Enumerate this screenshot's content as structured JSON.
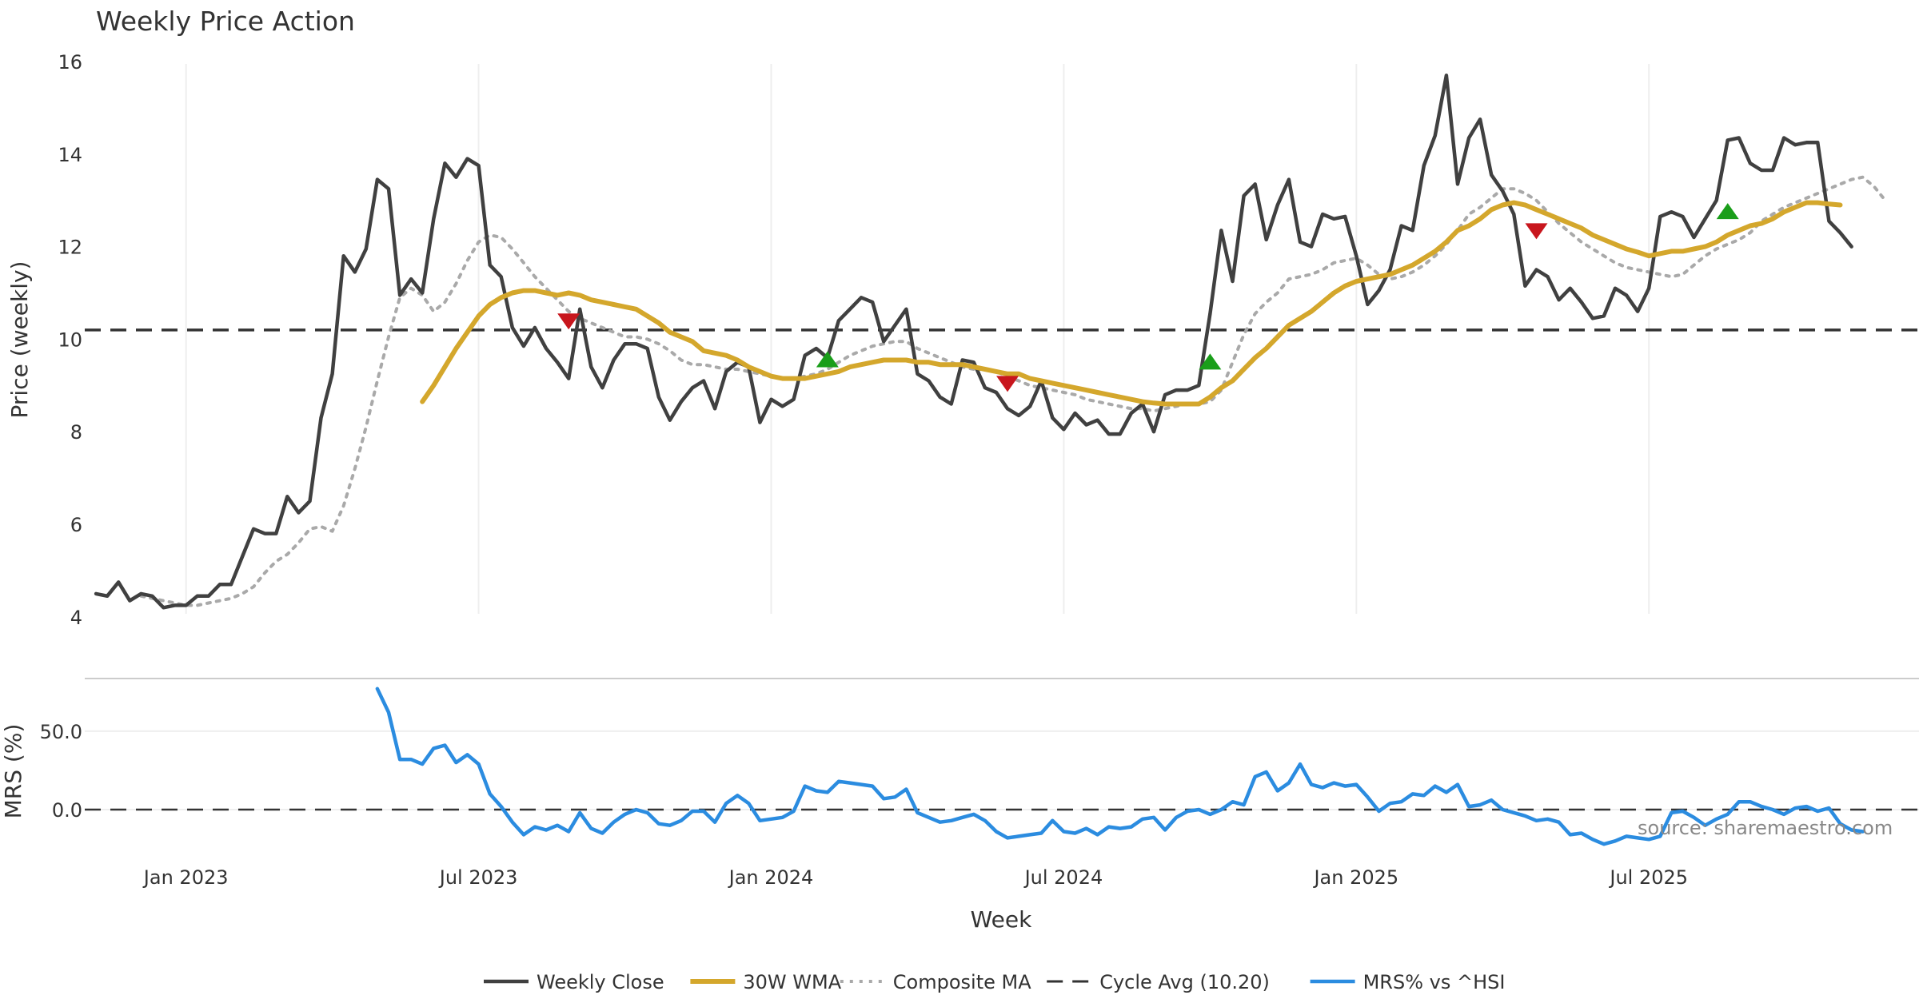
{
  "chart_data": {
    "type": "line",
    "title": "Weekly Price Action",
    "xlabel": "Week",
    "x_ticks": [
      "Jan 2023",
      "Jul 2023",
      "Jan 2024",
      "Jul 2024",
      "Jan 2025",
      "Jul 2025"
    ],
    "x_tick_weeks": [
      8,
      34,
      60,
      86,
      112,
      138
    ],
    "x_range_weeks": [
      -1,
      162
    ],
    "panels": [
      {
        "name": "price",
        "ylabel": "Price (weekly)",
        "ylim": [
          3.6,
          16.5
        ],
        "y_ticks": [
          4,
          6,
          8,
          10,
          12,
          14,
          16
        ],
        "series": [
          {
            "name": "Weekly Close",
            "style": "solid",
            "color": "#404040",
            "start_week": 0,
            "values": [
              4.5,
              4.45,
              4.75,
              4.35,
              4.5,
              4.45,
              4.2,
              4.25,
              4.25,
              4.45,
              4.45,
              4.7,
              4.7,
              5.3,
              5.9,
              5.8,
              5.8,
              6.6,
              6.25,
              6.5,
              8.3,
              9.25,
              11.8,
              11.45,
              11.95,
              13.45,
              13.25,
              10.95,
              11.3,
              11.0,
              12.6,
              13.8,
              13.5,
              13.9,
              13.75,
              11.6,
              11.35,
              10.25,
              9.85,
              10.25,
              9.8,
              9.5,
              9.15,
              10.65,
              9.4,
              8.95,
              9.55,
              9.9,
              9.9,
              9.8,
              8.75,
              8.25,
              8.65,
              8.95,
              9.1,
              8.5,
              9.3,
              9.5,
              9.4,
              8.2,
              8.7,
              8.55,
              8.7,
              9.65,
              9.8,
              9.6,
              10.4,
              10.65,
              10.9,
              10.8,
              9.95,
              10.3,
              10.65,
              9.25,
              9.1,
              8.75,
              8.6,
              9.55,
              9.5,
              8.95,
              8.85,
              8.5,
              8.35,
              8.55,
              9.1,
              8.3,
              8.05,
              8.4,
              8.15,
              8.25,
              7.95,
              7.95,
              8.4,
              8.6,
              8.0,
              8.8,
              8.9,
              8.9,
              9.0,
              10.55,
              12.35,
              11.25,
              13.1,
              13.35,
              12.15,
              12.9,
              13.45,
              12.1,
              12.0,
              12.7,
              12.6,
              12.65,
              11.8,
              10.75,
              11.05,
              11.5,
              12.45,
              12.35,
              13.75,
              14.4,
              15.7,
              13.35,
              14.35,
              14.75,
              13.55,
              13.2,
              12.7,
              11.15,
              11.5,
              11.35,
              10.85,
              11.1,
              10.8,
              10.45,
              10.5,
              11.1,
              10.95,
              10.6,
              11.1,
              12.65,
              12.75,
              12.65,
              12.2,
              12.6,
              13.0,
              14.3,
              14.35,
              13.8,
              13.65,
              13.65,
              14.35,
              14.2,
              14.25,
              14.25,
              12.55,
              12.3,
              12.0
            ]
          },
          {
            "name": "30W WMA",
            "style": "solid-thick",
            "color": "#D4A72C",
            "start_week": 29,
            "values": [
              8.65,
              9.0,
              9.4,
              9.8,
              10.15,
              10.5,
              10.75,
              10.9,
              11.0,
              11.05,
              11.05,
              11.0,
              10.95,
              11.0,
              10.95,
              10.85,
              10.8,
              10.75,
              10.7,
              10.65,
              10.5,
              10.35,
              10.15,
              10.05,
              9.95,
              9.75,
              9.7,
              9.65,
              9.55,
              9.4,
              9.3,
              9.2,
              9.15,
              9.15,
              9.15,
              9.2,
              9.25,
              9.3,
              9.4,
              9.45,
              9.5,
              9.55,
              9.55,
              9.55,
              9.5,
              9.5,
              9.45,
              9.45,
              9.45,
              9.4,
              9.35,
              9.3,
              9.25,
              9.25,
              9.15,
              9.1,
              9.05,
              9.0,
              8.95,
              8.9,
              8.85,
              8.8,
              8.75,
              8.7,
              8.65,
              8.62,
              8.6,
              8.6,
              8.6,
              8.6,
              8.75,
              8.95,
              9.1,
              9.35,
              9.6,
              9.8,
              10.05,
              10.3,
              10.45,
              10.6,
              10.8,
              11.0,
              11.15,
              11.25,
              11.3,
              11.35,
              11.4,
              11.5,
              11.6,
              11.75,
              11.9,
              12.1,
              12.35,
              12.45,
              12.6,
              12.8,
              12.9,
              12.95,
              12.9,
              12.8,
              12.7,
              12.6,
              12.5,
              12.4,
              12.25,
              12.15,
              12.05,
              11.95,
              11.88,
              11.8,
              11.85,
              11.9,
              11.9,
              11.95,
              12.0,
              12.1,
              12.25,
              12.35,
              12.45,
              12.5,
              12.6,
              12.75,
              12.85,
              12.95,
              12.95,
              12.92,
              12.9
            ]
          },
          {
            "name": "Composite MA",
            "style": "dotted",
            "color": "#A9A9A9",
            "start_week": 4,
            "values": [
              4.45,
              4.4,
              4.35,
              4.3,
              4.25,
              4.25,
              4.3,
              4.35,
              4.4,
              4.5,
              4.65,
              4.95,
              5.2,
              5.35,
              5.6,
              5.9,
              5.95,
              5.85,
              6.4,
              7.2,
              8.1,
              9.1,
              10.05,
              10.9,
              11.1,
              10.95,
              10.6,
              10.8,
              11.2,
              11.7,
              12.1,
              12.25,
              12.2,
              11.95,
              11.65,
              11.35,
              11.1,
              10.85,
              10.6,
              10.45,
              10.35,
              10.25,
              10.15,
              10.05,
              10.05,
              10.0,
              9.9,
              9.75,
              9.55,
              9.45,
              9.45,
              9.4,
              9.35,
              9.35,
              9.3,
              9.25,
              9.2,
              9.15,
              9.15,
              9.2,
              9.25,
              9.35,
              9.5,
              9.65,
              9.75,
              9.85,
              9.9,
              9.95,
              9.95,
              9.8,
              9.7,
              9.6,
              9.5,
              9.4,
              9.35,
              9.35,
              9.3,
              9.2,
              9.1,
              9.0,
              8.95,
              8.9,
              8.85,
              8.8,
              8.7,
              8.65,
              8.6,
              8.55,
              8.5,
              8.5,
              8.45,
              8.5,
              8.55,
              8.6,
              8.6,
              8.65,
              8.9,
              9.5,
              10.1,
              10.55,
              10.8,
              11.0,
              11.3,
              11.35,
              11.4,
              11.5,
              11.65,
              11.7,
              11.75,
              11.6,
              11.4,
              11.3,
              11.35,
              11.45,
              11.6,
              11.8,
              12.05,
              12.35,
              12.7,
              12.85,
              13.05,
              13.25,
              13.25,
              13.15,
              13.0,
              12.75,
              12.5,
              12.3,
              12.1,
              11.95,
              11.8,
              11.65,
              11.55,
              11.5,
              11.45,
              11.4,
              11.35,
              11.4,
              11.6,
              11.8,
              11.95,
              12.05,
              12.15,
              12.3,
              12.55,
              12.7,
              12.85,
              12.95,
              13.05,
              13.15,
              13.25,
              13.35,
              13.45,
              13.5,
              13.3,
              13.0
            ]
          }
        ],
        "reference_line": {
          "name": "Cycle Avg (10.20)",
          "value": 10.2,
          "style": "dashed",
          "color": "#333333"
        },
        "signals": [
          {
            "type": "sell",
            "week": 42,
            "value": 10.4,
            "color": "#C8161D"
          },
          {
            "type": "buy",
            "week": 65,
            "value": 9.55,
            "color": "#1A9E1A"
          },
          {
            "type": "sell",
            "week": 81,
            "value": 9.05,
            "color": "#C8161D"
          },
          {
            "type": "buy",
            "week": 99,
            "value": 9.5,
            "color": "#1A9E1A"
          },
          {
            "type": "sell",
            "week": 128,
            "value": 12.35,
            "color": "#C8161D"
          },
          {
            "type": "buy",
            "week": 145,
            "value": 12.75,
            "color": "#1A9E1A"
          }
        ]
      },
      {
        "name": "mrs",
        "ylabel": "MRS (%)",
        "ylim": [
          -28,
          82
        ],
        "y_ticks": [
          0,
          50
        ],
        "y_tick_labels": [
          "0.0",
          "50.0"
        ],
        "source_note": "source: sharemaestro.com",
        "series": [
          {
            "name": "MRS% vs ^HSI",
            "style": "solid",
            "color": "#2B8CE0",
            "start_week": 25,
            "values": [
              77,
              62,
              32,
              32,
              29,
              39,
              41,
              30,
              35,
              29,
              10,
              2,
              -8,
              -16,
              -11,
              -13,
              -10,
              -14,
              -2,
              -12,
              -15,
              -8,
              -3,
              0,
              -2,
              -9,
              -10,
              -7,
              -1,
              -1,
              -8,
              4,
              9,
              4,
              -7,
              -6,
              -5,
              -1,
              15,
              12,
              11,
              18,
              17,
              16,
              15,
              7,
              8,
              13,
              -2,
              -5,
              -8,
              -7,
              -5,
              -3,
              -7,
              -14,
              -18,
              -17,
              -16,
              -15,
              -7,
              -14,
              -15,
              -12,
              -16,
              -11,
              -12,
              -11,
              -6,
              -5,
              -13,
              -5,
              -1,
              0,
              -3,
              0,
              5,
              3,
              21,
              24,
              12,
              17,
              29,
              16,
              14,
              17,
              15,
              16,
              8,
              -1,
              4,
              5,
              10,
              9,
              15,
              11,
              16,
              2,
              3,
              6,
              0,
              -2,
              -4,
              -7,
              -6,
              -8,
              -16,
              -15,
              -19,
              -22,
              -20,
              -17,
              -18,
              -19,
              -17,
              -2,
              -1,
              -5,
              -10,
              -6,
              -3,
              5,
              5,
              2,
              0,
              -3,
              1,
              2,
              -1,
              1,
              -9,
              -13,
              -14
            ]
          }
        ],
        "reference_line": {
          "value": 0,
          "style": "dashed",
          "color": "#333333"
        }
      }
    ],
    "legend": {
      "placement": "bottom-center",
      "entries": [
        {
          "label": "Weekly Close",
          "color": "#404040",
          "style": "solid"
        },
        {
          "label": "30W WMA",
          "color": "#D4A72C",
          "style": "solid-thick"
        },
        {
          "label": "Composite MA",
          "color": "#A9A9A9",
          "style": "dotted"
        },
        {
          "label": "Cycle Avg (10.20)",
          "color": "#333333",
          "style": "dashed"
        },
        {
          "label": "MRS% vs ^HSI",
          "color": "#2B8CE0",
          "style": "solid"
        }
      ]
    }
  }
}
